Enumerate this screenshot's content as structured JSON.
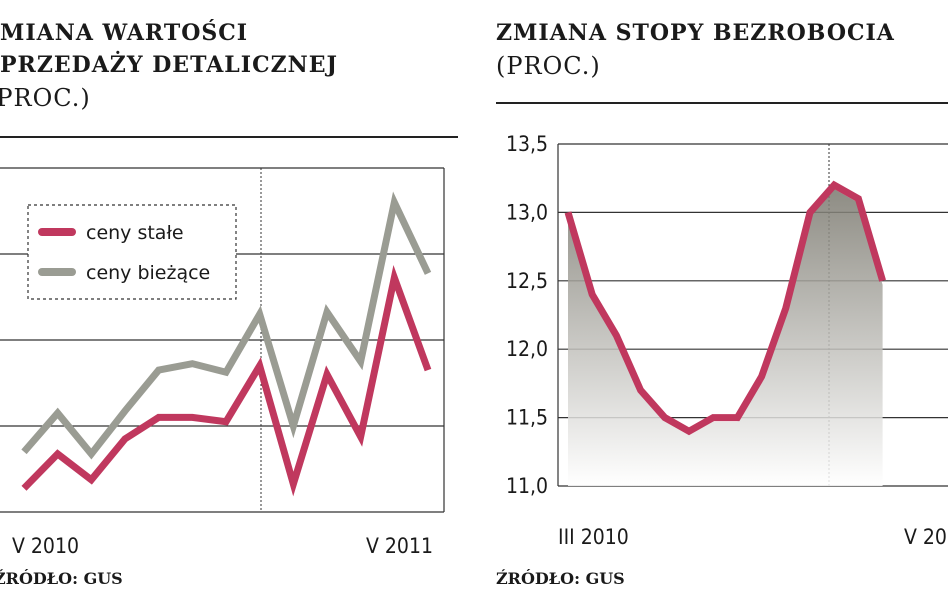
{
  "colors": {
    "real": "#c0385e",
    "nominal": "#9a9c93",
    "fill_top": "#7a786e",
    "fill_bottom": "#ffffff"
  },
  "chart_data": [
    {
      "type": "line",
      "title_line1": "MIANA WARTOŚCI",
      "title_line2": "PRZEDAŻY DETALICZNEJ",
      "subtitle": "(PROC.)",
      "source": "ŹRÓDŁO: GUS",
      "x_labels": [
        "V 2010",
        "V 2011"
      ],
      "legend_placement": "top-left",
      "series": [
        {
          "name": "ceny stałe",
          "color": "#c0385e",
          "values": [
            1.1,
            2.7,
            1.5,
            3.4,
            4.4,
            4.4,
            4.2,
            6.8,
            1.3,
            6.4,
            3.5,
            10.9,
            6.6
          ]
        },
        {
          "name": "ceny bieżące",
          "color": "#9a9c93",
          "values": [
            2.8,
            4.6,
            2.7,
            4.7,
            6.6,
            6.9,
            6.5,
            9.2,
            4.0,
            9.3,
            7.0,
            14.4,
            11.1
          ]
        }
      ]
    },
    {
      "type": "area",
      "title": "ZMIANA STOPY BEZROBOCIA",
      "subtitle": "(PROC.)",
      "source": "ŹRÓDŁO: GUS",
      "y_ticks": [
        "13,5",
        "13,0",
        "12,5",
        "12,0",
        "11,5",
        "11,0"
      ],
      "ylim": [
        11.0,
        13.5
      ],
      "x_labels": [
        "III 2010",
        "V 20"
      ],
      "values": [
        13.0,
        12.4,
        12.1,
        11.7,
        11.5,
        11.4,
        11.5,
        11.5,
        11.8,
        12.3,
        13.0,
        13.2,
        13.1,
        12.5
      ]
    }
  ]
}
